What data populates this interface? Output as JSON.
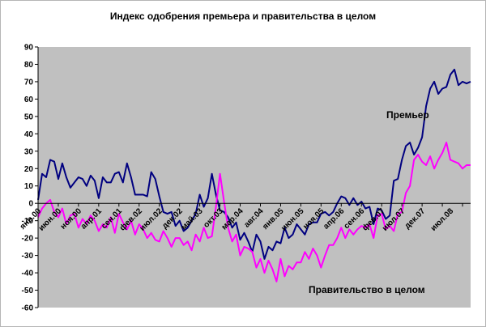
{
  "chart_data": {
    "type": "line",
    "title": "Индекс одобрения премьера и правительства в целом",
    "ylim": [
      -60,
      90
    ],
    "yticks": [
      -60,
      -50,
      -40,
      -30,
      -20,
      -10,
      0,
      10,
      20,
      30,
      40,
      50,
      60,
      70,
      80,
      90
    ],
    "ytick_labels": [
      "-60",
      "-50",
      "-40",
      "-30",
      "-20",
      "-10",
      "0",
      "10",
      "20",
      "30",
      "40",
      "50",
      "60",
      "70",
      "80",
      "90"
    ],
    "x_tick_labels": [
      "янв.00",
      "июн.00",
      "ноя.00",
      "апр.01",
      "сен.01",
      "фев.02",
      "июл.02",
      "дек.02",
      "май.03",
      "окт.03",
      "мар.04",
      "авг.04",
      "янв.05",
      "июн.05",
      "ноя.05",
      "апр.06",
      "сен.06",
      "фев.07",
      "июл.07",
      "дек.07",
      "июл.08"
    ],
    "x_tick_months": [
      0,
      5,
      10,
      15,
      20,
      25,
      30,
      35,
      40,
      45,
      50,
      55,
      60,
      65,
      70,
      75,
      80,
      85,
      90,
      95,
      102
    ],
    "months_total": 107,
    "grid": false,
    "plot_background": "#c0c0c0",
    "series": [
      {
        "name": "Премьер",
        "color": "#000080",
        "x": [
          0,
          1,
          2,
          3,
          4,
          5,
          6,
          7,
          8,
          9,
          10,
          11,
          12,
          13,
          14,
          15,
          16,
          17,
          18,
          19,
          20,
          21,
          22,
          23,
          24,
          25,
          26,
          27,
          28,
          29,
          30,
          31,
          32,
          33,
          34,
          35,
          36,
          37,
          38,
          39,
          40,
          41,
          42,
          43,
          44,
          45,
          46,
          47,
          48,
          49,
          50,
          51,
          52,
          53,
          54,
          55,
          56,
          57,
          58,
          59,
          60,
          61,
          62,
          63,
          64,
          65,
          66,
          67,
          68,
          69,
          70,
          71,
          72,
          73,
          74,
          75,
          76,
          77,
          78,
          79,
          80,
          81,
          82,
          83,
          84,
          85,
          86,
          87,
          88,
          89,
          90,
          91,
          92,
          93,
          94,
          95,
          96,
          97,
          98,
          99,
          100,
          101,
          102,
          103,
          104,
          105,
          106,
          107
        ],
        "values": [
          2,
          17,
          15,
          25,
          24,
          14,
          23,
          15,
          9,
          12,
          15,
          14,
          10,
          16,
          13,
          3,
          15,
          12,
          12,
          17,
          18,
          12,
          23,
          15,
          5,
          5,
          5,
          4,
          18,
          14,
          4,
          -5,
          -6,
          -5,
          -13,
          -10,
          -16,
          -14,
          -10,
          -6,
          5,
          -2,
          3,
          17,
          5,
          -4,
          -5,
          -8,
          -14,
          -11,
          -21,
          -17,
          -22,
          -28,
          -18,
          -22,
          -32,
          -25,
          -27,
          -22,
          -23,
          -14,
          -20,
          -18,
          -12,
          -15,
          -18,
          -12,
          -11,
          -11,
          -6,
          -5,
          -7,
          -5,
          0,
          4,
          3,
          -1,
          3,
          -1,
          1,
          -3,
          -2,
          -12,
          -3,
          -4,
          -9,
          -7,
          13,
          14,
          25,
          33,
          35,
          28,
          32,
          38,
          56,
          66,
          70,
          63,
          66,
          67,
          74,
          77,
          68,
          70,
          69,
          70
        ],
        "end_label": "Премьер"
      },
      {
        "name": "Правительство в целом",
        "color": "#ff00ff",
        "x": [
          0,
          1,
          2,
          3,
          4,
          5,
          6,
          7,
          8,
          9,
          10,
          11,
          12,
          13,
          14,
          15,
          16,
          17,
          18,
          19,
          20,
          21,
          22,
          23,
          24,
          25,
          26,
          27,
          28,
          29,
          30,
          31,
          32,
          33,
          34,
          35,
          36,
          37,
          38,
          39,
          40,
          41,
          42,
          43,
          44,
          45,
          46,
          47,
          48,
          49,
          50,
          51,
          52,
          53,
          54,
          55,
          56,
          57,
          58,
          59,
          60,
          61,
          62,
          63,
          64,
          65,
          66,
          67,
          68,
          69,
          70,
          71,
          72,
          73,
          74,
          75,
          76,
          77,
          78,
          79,
          80,
          81,
          82,
          83,
          84,
          85,
          86,
          87,
          88,
          89,
          90,
          91,
          92,
          93,
          94,
          95,
          96,
          97,
          98,
          99,
          100,
          101,
          102,
          103,
          104,
          105,
          106,
          107
        ],
        "values": [
          -8,
          -3,
          0,
          2,
          -5,
          -8,
          -3,
          -12,
          -7,
          -6,
          -14,
          -9,
          -12,
          -7,
          -10,
          -16,
          -12,
          -14,
          -8,
          -17,
          -6,
          -11,
          -15,
          -10,
          -18,
          -12,
          -15,
          -20,
          -17,
          -21,
          -22,
          -16,
          -20,
          -25,
          -20,
          -20,
          -24,
          -22,
          -27,
          -18,
          -22,
          -14,
          -20,
          -19,
          -2,
          17,
          1,
          -14,
          -22,
          -18,
          -30,
          -25,
          -26,
          -28,
          -37,
          -32,
          -40,
          -33,
          -38,
          -45,
          -32,
          -42,
          -36,
          -38,
          -34,
          -34,
          -28,
          -32,
          -26,
          -30,
          -37,
          -30,
          -24,
          -24,
          -20,
          -14,
          -20,
          -15,
          -18,
          -15,
          -13,
          -14,
          -12,
          -20,
          -7,
          -6,
          -15,
          -13,
          -16,
          -6,
          -5,
          6,
          10,
          25,
          28,
          24,
          22,
          27,
          20,
          25,
          29,
          35,
          25,
          24,
          23,
          20,
          22,
          22
        ],
        "end_label": "Правительство в целом"
      }
    ]
  }
}
